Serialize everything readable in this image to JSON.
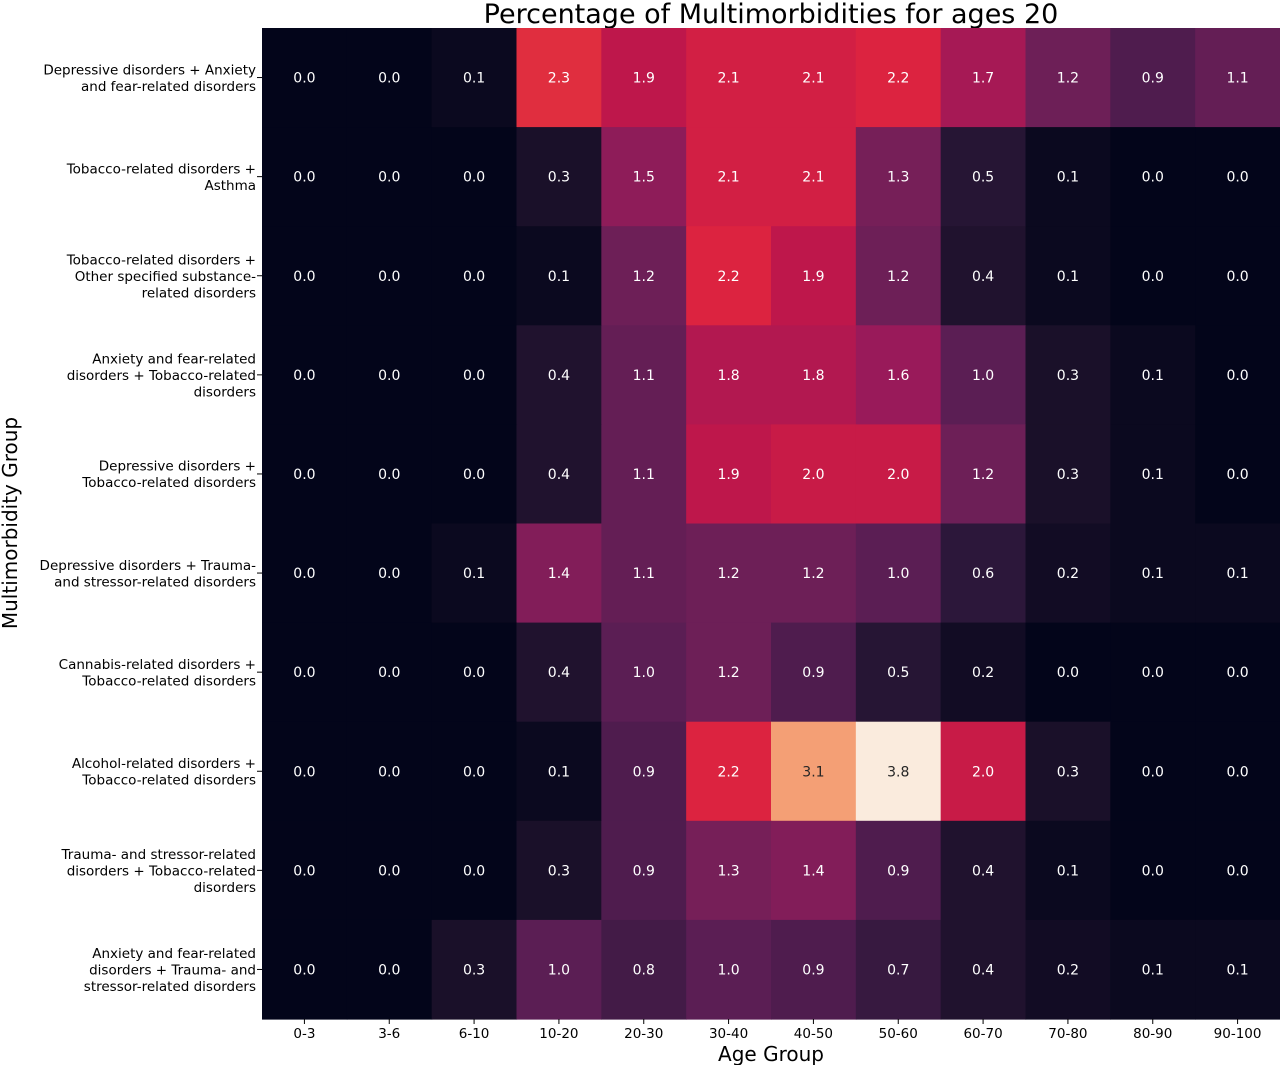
{
  "chart_data": {
    "type": "heatmap",
    "title": "Percentage of Multimorbidities for ages 20",
    "xlabel": "Age Group",
    "ylabel": "Multimorbidity  Group",
    "x_categories": [
      "0-3",
      "3-6",
      "6-10",
      "10-20",
      "20-30",
      "30-40",
      "40-50",
      "50-60",
      "60-70",
      "70-80",
      "80-90",
      "90-100"
    ],
    "y_categories": [
      [
        "Depressive disorders + Anxiety",
        "and fear-related disorders"
      ],
      [
        "Tobacco-related disorders +",
        "Asthma"
      ],
      [
        "Tobacco-related disorders +",
        "Other specified substance-",
        "related disorders"
      ],
      [
        "Anxiety and fear-related",
        "disorders + Tobacco-related",
        "disorders"
      ],
      [
        "Depressive disorders +",
        "Tobacco-related disorders"
      ],
      [
        "Depressive disorders + Trauma-",
        "and stressor-related disorders"
      ],
      [
        "Cannabis-related disorders +",
        "Tobacco-related disorders"
      ],
      [
        "Alcohol-related disorders +",
        "Tobacco-related disorders"
      ],
      [
        "Trauma- and stressor-related",
        "disorders + Tobacco-related",
        "disorders"
      ],
      [
        "Anxiety and fear-related",
        "disorders + Trauma- and",
        "stressor-related disorders"
      ]
    ],
    "values": [
      [
        0.0,
        0.0,
        0.1,
        2.3,
        1.9,
        2.1,
        2.1,
        2.2,
        1.7,
        1.2,
        0.9,
        1.1
      ],
      [
        0.0,
        0.0,
        0.0,
        0.3,
        1.5,
        2.1,
        2.1,
        1.3,
        0.5,
        0.1,
        0.0,
        0.0
      ],
      [
        0.0,
        0.0,
        0.0,
        0.1,
        1.2,
        2.2,
        1.9,
        1.2,
        0.4,
        0.1,
        0.0,
        0.0
      ],
      [
        0.0,
        0.0,
        0.0,
        0.4,
        1.1,
        1.8,
        1.8,
        1.6,
        1.0,
        0.3,
        0.1,
        0.0
      ],
      [
        0.0,
        0.0,
        0.0,
        0.4,
        1.1,
        1.9,
        2.0,
        2.0,
        1.2,
        0.3,
        0.1,
        0.0
      ],
      [
        0.0,
        0.0,
        0.1,
        1.4,
        1.1,
        1.2,
        1.2,
        1.0,
        0.6,
        0.2,
        0.1,
        0.1
      ],
      [
        0.0,
        0.0,
        0.0,
        0.4,
        1.0,
        1.2,
        0.9,
        0.5,
        0.2,
        0.0,
        0.0,
        0.0
      ],
      [
        0.0,
        0.0,
        0.0,
        0.1,
        0.9,
        2.2,
        3.1,
        3.8,
        2.0,
        0.3,
        0.0,
        0.0
      ],
      [
        0.0,
        0.0,
        0.0,
        0.3,
        0.9,
        1.3,
        1.4,
        0.9,
        0.4,
        0.1,
        0.0,
        0.0
      ],
      [
        0.0,
        0.0,
        0.3,
        1.0,
        0.8,
        1.0,
        0.9,
        0.7,
        0.4,
        0.2,
        0.1,
        0.1
      ]
    ],
    "value_range": [
      0.0,
      3.8
    ],
    "colormap": "rocket",
    "cell_label_colors": {
      "on_dark": "#ffffff",
      "on_light": "#262626"
    }
  }
}
